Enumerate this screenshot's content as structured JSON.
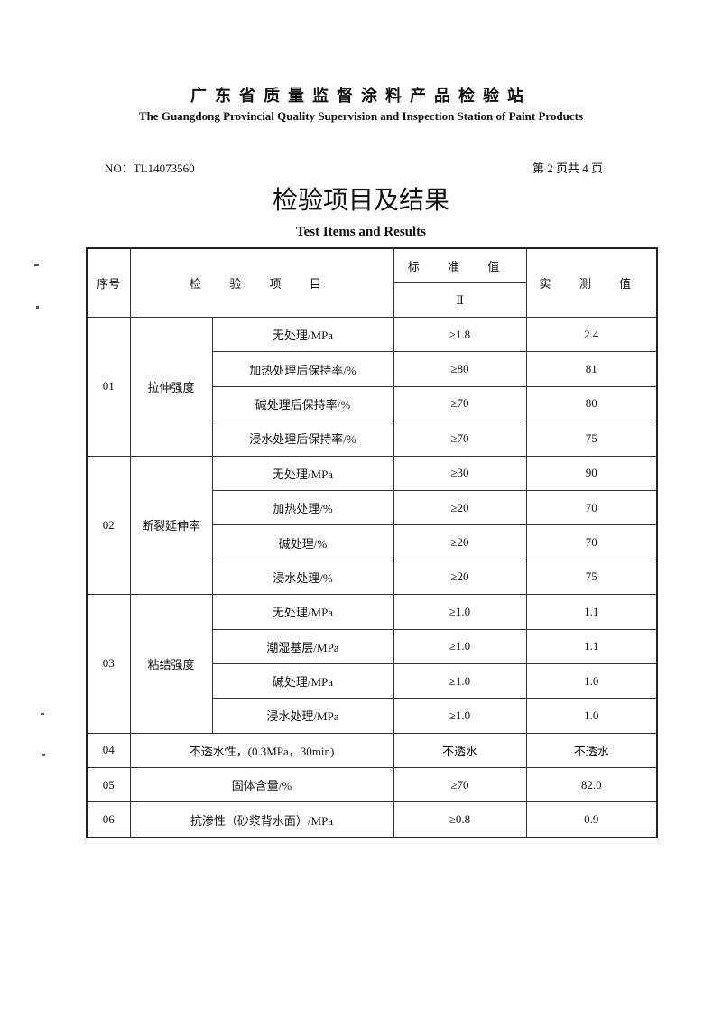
{
  "header": {
    "org_cn": "广东省质量监督涂料产品检验站",
    "org_en": "The Guangdong Provincial Quality Supervision and Inspection Station of Paint Products",
    "report_no": "NO：TL14073560",
    "page_info": "第 2 页共 4 页",
    "title_cn": "检验项目及结果",
    "title_en": "Test Items and Results"
  },
  "table": {
    "headers": {
      "seq": "序号",
      "item": "检 验 项 目",
      "standard": "标 准 值",
      "grade": "Ⅱ",
      "measured": "实 测 值"
    },
    "groups": [
      {
        "seq": "01",
        "name": "拉伸强度",
        "rows": [
          {
            "sub": "无处理/MPa",
            "std": "≥1.8",
            "val": "2.4"
          },
          {
            "sub": "加热处理后保持率/%",
            "std": "≥80",
            "val": "81"
          },
          {
            "sub": "碱处理后保持率/%",
            "std": "≥70",
            "val": "80"
          },
          {
            "sub": "浸水处理后保持率/%",
            "std": "≥70",
            "val": "75"
          }
        ]
      },
      {
        "seq": "02",
        "name": "断裂延伸率",
        "rows": [
          {
            "sub": "无处理/MPa",
            "std": "≥30",
            "val": "90"
          },
          {
            "sub": "加热处理/%",
            "std": "≥20",
            "val": "70"
          },
          {
            "sub": "碱处理/%",
            "std": "≥20",
            "val": "70"
          },
          {
            "sub": "浸水处理/%",
            "std": "≥20",
            "val": "75"
          }
        ]
      },
      {
        "seq": "03",
        "name": "粘结强度",
        "rows": [
          {
            "sub": "无处理/MPa",
            "std": "≥1.0",
            "val": "1.1"
          },
          {
            "sub": "潮湿基层/MPa",
            "std": "≥1.0",
            "val": "1.1"
          },
          {
            "sub": "碱处理/MPa",
            "std": "≥1.0",
            "val": "1.0"
          },
          {
            "sub": "浸水处理/MPa",
            "std": "≥1.0",
            "val": "1.0"
          }
        ]
      }
    ],
    "singles": [
      {
        "seq": "04",
        "name": "不透水性，(0.3MPa，30min)",
        "std": "不透水",
        "val": "不透水"
      },
      {
        "seq": "05",
        "name": "固体含量/%",
        "std": "≥70",
        "val": "82.0"
      },
      {
        "seq": "06",
        "name": "抗渗性（砂浆背水面）/MPa",
        "std": "≥0.8",
        "val": "0.9"
      }
    ]
  }
}
